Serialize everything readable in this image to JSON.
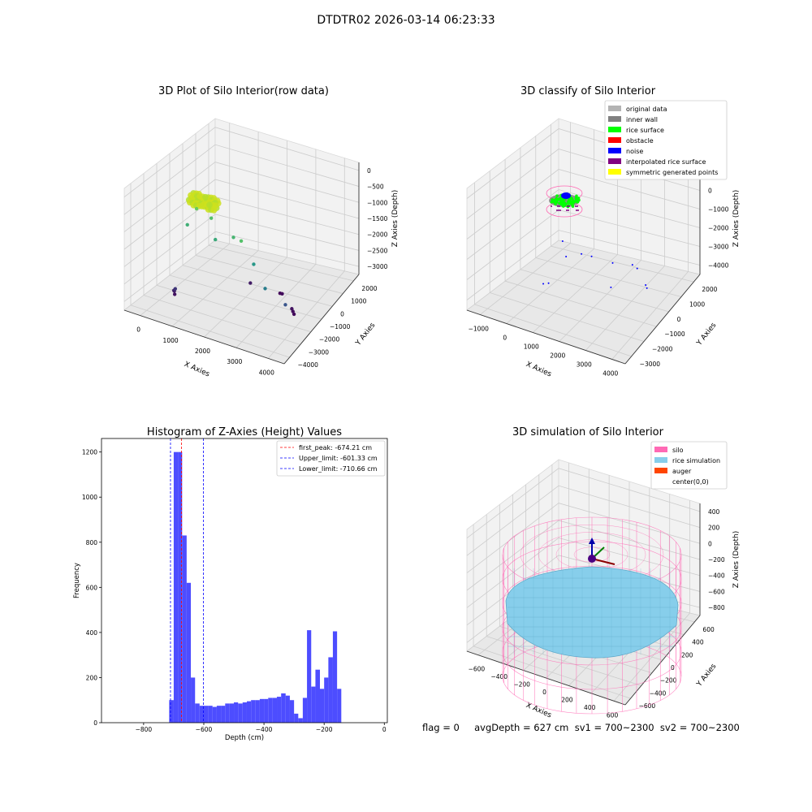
{
  "suptitle": "DTDTR02 2026-03-14 06:23:33",
  "footer": "flag = 0     avgDepth = 627 cm  sv1 = 700~2300  sv2 = 700~2300",
  "chart_data": [
    {
      "type": "scatter",
      "title": "3D Plot of Silo Interior(row data)",
      "xlabel": "X Axies",
      "ylabel": "Y Axies",
      "zlabel": "Z Axies (Depth)",
      "xticks": [
        "0",
        "1000",
        "2000",
        "3000",
        "4000"
      ],
      "yticks": [
        "2000",
        "1000",
        "0",
        "−1000",
        "−2000",
        "−3000",
        "−4000"
      ],
      "zticks": [
        "0",
        "−500",
        "−1000",
        "−1500",
        "−2000",
        "−2500",
        "−3000"
      ],
      "colormap": "viridis",
      "points": [
        [
          3600,
          -600,
          -3500
        ],
        [
          3550,
          -650,
          -3450
        ],
        [
          3500,
          -700,
          -3400
        ],
        [
          2900,
          -1600,
          -3450
        ],
        [
          2800,
          -1700,
          -3500
        ],
        [
          2000,
          -1400,
          -3300
        ],
        [
          500,
          700,
          -3400
        ],
        [
          450,
          600,
          -3350
        ],
        [
          550,
          900,
          -3200
        ],
        [
          700,
          1200,
          -3000
        ],
        [
          3800,
          800,
          -2600
        ],
        [
          3400,
          1400,
          -2000
        ],
        [
          2900,
          900,
          -1600
        ],
        [
          2200,
          600,
          -1100
        ],
        [
          2600,
          1100,
          -900
        ],
        [
          1700,
          700,
          -1300
        ],
        [
          1400,
          200,
          -900
        ],
        [
          800,
          500,
          -1200
        ],
        [
          1000,
          300,
          -700
        ]
      ],
      "dense_cluster": {
        "x_range": [
          700,
          1500
        ],
        "y_range": [
          -400,
          400
        ],
        "z_range": [
          -700,
          -400
        ],
        "color": "#cde11d"
      }
    },
    {
      "type": "scatter",
      "title": "3D classify of Silo Interior",
      "xlabel": "X Axies",
      "ylabel": "Y Axies",
      "zlabel": "Z Axies (Depth)",
      "xticks": [
        "−1000",
        "0",
        "1000",
        "2000",
        "3000",
        "4000"
      ],
      "yticks": [
        "2000",
        "1000",
        "0",
        "−1000",
        "−2000",
        "−3000"
      ],
      "zticks": [
        "1000",
        "0",
        "−1000",
        "−2000",
        "−3000",
        "−4000"
      ],
      "legend_position": "top-right",
      "legend": [
        {
          "label": "original data",
          "color": "#b3b3b3"
        },
        {
          "label": "inner wall",
          "color": "#808080"
        },
        {
          "label": "rice surface",
          "color": "#00ff00"
        },
        {
          "label": "obstacle",
          "color": "#ff0000"
        },
        {
          "label": "noise",
          "color": "#0000ff"
        },
        {
          "label": "interpolated rice surface",
          "color": "#800080"
        },
        {
          "label": "symmetric generated points",
          "color": "#ffff00"
        }
      ],
      "noise_points": [
        [
          3700,
          -700,
          -3500
        ],
        [
          3600,
          -800,
          -3450
        ],
        [
          2800,
          -1700,
          -3500
        ],
        [
          2500,
          -1900,
          -3550
        ],
        [
          1900,
          -1500,
          -3400
        ],
        [
          400,
          500,
          -3700
        ],
        [
          300,
          700,
          -3650
        ],
        [
          3300,
          1400,
          -2200
        ],
        [
          2300,
          900,
          -1400
        ],
        [
          1800,
          700,
          -1600
        ],
        [
          1300,
          900,
          -1800
        ],
        [
          900,
          400,
          -1500
        ]
      ]
    },
    {
      "type": "bar",
      "title": "Histogram of Z-Axies (Height) Values",
      "xlabel": "Depth (cm)",
      "ylabel": "Frequency",
      "xlim": [
        -940,
        10
      ],
      "ylim": [
        0,
        1260
      ],
      "xticks": [
        -800,
        -600,
        -400,
        -200,
        0
      ],
      "xtick_labels": [
        "−800",
        "−600",
        "−400",
        "−200",
        "0"
      ],
      "yticks": [
        0,
        200,
        400,
        600,
        800,
        1000,
        1200
      ],
      "bar_color": "#4d4dff",
      "bins": [
        [
          -715,
          -700,
          100
        ],
        [
          -700,
          -686,
          1200
        ],
        [
          -686,
          -672,
          1200
        ],
        [
          -672,
          -657,
          830
        ],
        [
          -657,
          -643,
          620
        ],
        [
          -643,
          -629,
          200
        ],
        [
          -629,
          -614,
          85
        ],
        [
          -614,
          -600,
          75
        ],
        [
          -600,
          -586,
          75
        ],
        [
          -586,
          -571,
          75
        ],
        [
          -571,
          -557,
          70
        ],
        [
          -557,
          -543,
          75
        ],
        [
          -543,
          -529,
          75
        ],
        [
          -529,
          -514,
          85
        ],
        [
          -514,
          -500,
          85
        ],
        [
          -500,
          -486,
          90
        ],
        [
          -486,
          -471,
          85
        ],
        [
          -471,
          -457,
          90
        ],
        [
          -457,
          -443,
          95
        ],
        [
          -443,
          -428,
          100
        ],
        [
          -428,
          -414,
          100
        ],
        [
          -414,
          -400,
          105
        ],
        [
          -400,
          -386,
          105
        ],
        [
          -386,
          -371,
          110
        ],
        [
          -371,
          -357,
          110
        ],
        [
          -357,
          -343,
          115
        ],
        [
          -343,
          -328,
          130
        ],
        [
          -328,
          -314,
          120
        ],
        [
          -314,
          -300,
          100
        ],
        [
          -300,
          -286,
          40
        ],
        [
          -286,
          -271,
          20
        ],
        [
          -271,
          -257,
          110
        ],
        [
          -257,
          -243,
          410
        ],
        [
          -243,
          -229,
          160
        ],
        [
          -229,
          -214,
          235
        ],
        [
          -214,
          -200,
          150
        ],
        [
          -200,
          -186,
          200
        ],
        [
          -186,
          -171,
          290
        ],
        [
          -171,
          -157,
          405
        ],
        [
          -157,
          -143,
          150
        ]
      ],
      "vlines": [
        {
          "x": -674.21,
          "color": "#ff0000",
          "label": "first_peak: -674.21 cm"
        },
        {
          "x": -601.33,
          "color": "#0000ff",
          "label": "Upper_limit: -601.33 cm"
        },
        {
          "x": -710.66,
          "color": "#0000ff",
          "label": "Lower_limit: -710.66 cm"
        }
      ],
      "legend_position": "top-right"
    },
    {
      "type": "surface",
      "title": "3D simulation of Silo Interior",
      "xlabel": "X Axies",
      "ylabel": "Y Axies",
      "zlabel": "Z Axies (Depth)",
      "xticks": [
        "−600",
        "−400",
        "−200",
        "0",
        "200",
        "400",
        "600"
      ],
      "yticks": [
        "600",
        "400",
        "200",
        "0",
        "−200",
        "−400",
        "−600"
      ],
      "zticks": [
        "400",
        "200",
        "0",
        "−200",
        "−400",
        "−600",
        "−800"
      ],
      "legend_position": "top-right",
      "legend": [
        {
          "label": "silo",
          "color": "#ff69b4"
        },
        {
          "label": "rice simulation",
          "color": "#87ceeb"
        },
        {
          "label": "auger",
          "color": "#ff4500"
        },
        {
          "label": "center(0,0)",
          "color": ""
        }
      ]
    }
  ]
}
